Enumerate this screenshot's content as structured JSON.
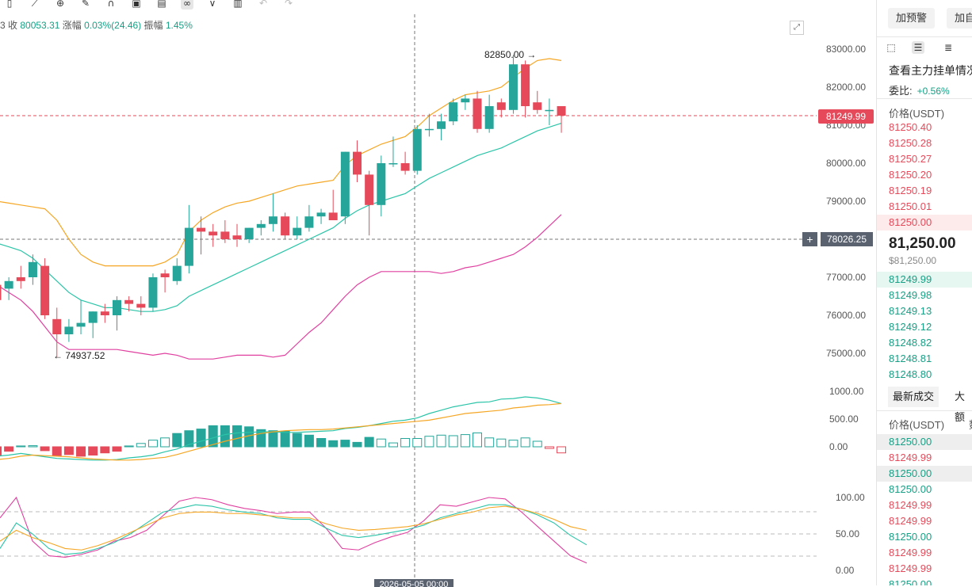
{
  "info_bar": {
    "close_label": "3 收",
    "close_value": "80053.31",
    "change_label": "涨幅",
    "change_value": "0.03%(24.46)",
    "amplitude_label": "振幅",
    "amplitude_value": "1.45%"
  },
  "price_axis": [
    "83000.00",
    "82000.00",
    "81000.00",
    "80000.00",
    "79000.00",
    "78000.00",
    "77000.00",
    "76000.00",
    "75000.00"
  ],
  "volume_axis": [
    "1000.00",
    "500.00",
    "0.00"
  ],
  "osc_axis": [
    "100.00",
    "50.00",
    "0.00"
  ],
  "last_price_tag": "81249.99",
  "crosshair_price": "78026.25",
  "crosshair_date": "2026-05-05 00:00",
  "high_label": "82850.00",
  "low_label": "74937.52",
  "colors": {
    "up": "#26a69a",
    "down": "#e64a5a",
    "ma_orange": "#f5a623",
    "ma_teal": "#2bc4a8",
    "ma_pink": "#e040a0"
  },
  "chart_data": {
    "type": "candlestick",
    "y_range": [
      74500,
      83500
    ],
    "candles": [
      {
        "o": 76800,
        "h": 77100,
        "l": 76300,
        "c": 76400
      },
      {
        "o": 76700,
        "h": 77000,
        "l": 76400,
        "c": 76900
      },
      {
        "o": 77000,
        "h": 77300,
        "l": 76700,
        "c": 76900
      },
      {
        "o": 77000,
        "h": 77600,
        "l": 76800,
        "c": 77400
      },
      {
        "o": 77300,
        "h": 77500,
        "l": 75900,
        "c": 76000
      },
      {
        "o": 75900,
        "h": 76200,
        "l": 74900,
        "c": 75500
      },
      {
        "o": 75500,
        "h": 75900,
        "l": 75300,
        "c": 75700
      },
      {
        "o": 75700,
        "h": 76400,
        "l": 75500,
        "c": 75800
      },
      {
        "o": 75800,
        "h": 76100,
        "l": 75400,
        "c": 76100
      },
      {
        "o": 76100,
        "h": 76300,
        "l": 75800,
        "c": 76000
      },
      {
        "o": 76000,
        "h": 76500,
        "l": 75600,
        "c": 76400
      },
      {
        "o": 76400,
        "h": 76500,
        "l": 76100,
        "c": 76300
      },
      {
        "o": 76300,
        "h": 76500,
        "l": 76000,
        "c": 76200
      },
      {
        "o": 76200,
        "h": 77100,
        "l": 76100,
        "c": 77000
      },
      {
        "o": 77100,
        "h": 77200,
        "l": 76600,
        "c": 77000
      },
      {
        "o": 76900,
        "h": 77500,
        "l": 76800,
        "c": 77300
      },
      {
        "o": 77300,
        "h": 78900,
        "l": 77100,
        "c": 78300
      },
      {
        "o": 78300,
        "h": 78600,
        "l": 77600,
        "c": 78200
      },
      {
        "o": 78200,
        "h": 78400,
        "l": 77800,
        "c": 78100
      },
      {
        "o": 78200,
        "h": 78500,
        "l": 77900,
        "c": 78000
      },
      {
        "o": 78100,
        "h": 78400,
        "l": 77800,
        "c": 78000
      },
      {
        "o": 78000,
        "h": 78300,
        "l": 77900,
        "c": 78300
      },
      {
        "o": 78300,
        "h": 78500,
        "l": 78100,
        "c": 78400
      },
      {
        "o": 78400,
        "h": 79200,
        "l": 78200,
        "c": 78600
      },
      {
        "o": 78600,
        "h": 78700,
        "l": 78000,
        "c": 78100
      },
      {
        "o": 78100,
        "h": 78600,
        "l": 78000,
        "c": 78300
      },
      {
        "o": 78300,
        "h": 78900,
        "l": 78200,
        "c": 78600
      },
      {
        "o": 78600,
        "h": 78800,
        "l": 78400,
        "c": 78700
      },
      {
        "o": 78700,
        "h": 79300,
        "l": 78500,
        "c": 78500
      },
      {
        "o": 78600,
        "h": 80300,
        "l": 78400,
        "c": 80300
      },
      {
        "o": 80300,
        "h": 80600,
        "l": 79500,
        "c": 79700
      },
      {
        "o": 79700,
        "h": 79800,
        "l": 78100,
        "c": 78900
      },
      {
        "o": 78900,
        "h": 80200,
        "l": 78600,
        "c": 80000
      },
      {
        "o": 80000,
        "h": 80700,
        "l": 79900,
        "c": 80000
      },
      {
        "o": 80000,
        "h": 80300,
        "l": 79700,
        "c": 79800
      },
      {
        "o": 79800,
        "h": 81000,
        "l": 79700,
        "c": 80900
      },
      {
        "o": 80900,
        "h": 81300,
        "l": 80700,
        "c": 80900
      },
      {
        "o": 80900,
        "h": 81300,
        "l": 80600,
        "c": 81100
      },
      {
        "o": 81100,
        "h": 81700,
        "l": 81000,
        "c": 81600
      },
      {
        "o": 81600,
        "h": 81800,
        "l": 81400,
        "c": 81700
      },
      {
        "o": 81700,
        "h": 81900,
        "l": 80800,
        "c": 80900
      },
      {
        "o": 80900,
        "h": 81800,
        "l": 80800,
        "c": 81500
      },
      {
        "o": 81600,
        "h": 81700,
        "l": 81200,
        "c": 81400
      },
      {
        "o": 81400,
        "h": 82850,
        "l": 81300,
        "c": 82600
      },
      {
        "o": 82600,
        "h": 82700,
        "l": 81200,
        "c": 81500
      },
      {
        "o": 81600,
        "h": 81900,
        "l": 81300,
        "c": 81400
      },
      {
        "o": 81400,
        "h": 81700,
        "l": 81000,
        "c": 81400
      },
      {
        "o": 81500,
        "h": 81500,
        "l": 80800,
        "c": 81250
      }
    ],
    "ma_upper": [
      79000,
      78950,
      78900,
      78850,
      78800,
      78500,
      78000,
      77600,
      77400,
      77300,
      77300,
      77300,
      77300,
      77300,
      77400,
      77600,
      78200,
      78500,
      78700,
      78850,
      78950,
      79000,
      79100,
      79200,
      79300,
      79400,
      79450,
      79500,
      79550,
      79950,
      80200,
      80350,
      80500,
      80600,
      80700,
      80950,
      81250,
      81450,
      81650,
      81800,
      81850,
      81900,
      82000,
      82250,
      82500,
      82700,
      82750,
      82700
    ],
    "ma_mid": [
      77900,
      77800,
      77700,
      77500,
      77200,
      76900,
      76600,
      76400,
      76300,
      76200,
      76200,
      76150,
      76100,
      76100,
      76150,
      76250,
      76500,
      76650,
      76800,
      76950,
      77100,
      77250,
      77400,
      77550,
      77700,
      77850,
      78000,
      78150,
      78300,
      78550,
      78750,
      78900,
      79000,
      79100,
      79200,
      79400,
      79600,
      79750,
      79900,
      80050,
      80200,
      80300,
      80400,
      80550,
      80700,
      80850,
      80950,
      81050
    ],
    "ma_lower": [
      76800,
      76600,
      76400,
      76100,
      75700,
      75300,
      75100,
      75100,
      75100,
      75100,
      75100,
      75050,
      75000,
      74950,
      75000,
      74950,
      74850,
      74850,
      74850,
      74900,
      74950,
      74950,
      74950,
      74900,
      74950,
      75250,
      75550,
      75800,
      76150,
      76500,
      76800,
      77000,
      77150,
      77150,
      77150,
      77150,
      77150,
      77100,
      77150,
      77250,
      77300,
      77400,
      77500,
      77600,
      77800,
      78050,
      78350,
      78650
    ],
    "volume": [
      -160,
      -80,
      15,
      20,
      -70,
      -160,
      -140,
      -170,
      -150,
      -110,
      -80,
      15,
      60,
      120,
      160,
      240,
      290,
      320,
      380,
      380,
      380,
      360,
      310,
      290,
      280,
      240,
      210,
      150,
      110,
      120,
      80,
      170,
      140,
      70,
      150,
      150,
      190,
      210,
      200,
      220,
      250,
      160,
      140,
      120,
      160,
      100,
      -30,
      -110
    ],
    "volume_ma_a": [
      -170,
      -150,
      -120,
      -150,
      -180,
      -210,
      -220,
      -230,
      -240,
      -240,
      -230,
      -200,
      -180,
      -150,
      -90,
      -40,
      40,
      100,
      160,
      220,
      250,
      260,
      270,
      270,
      260,
      260,
      270,
      280,
      290,
      330,
      350,
      380,
      420,
      460,
      480,
      520,
      600,
      660,
      720,
      760,
      800,
      810,
      860,
      870,
      900,
      880,
      840,
      780
    ],
    "volume_ma_b": [
      -230,
      -210,
      -170,
      -150,
      -160,
      -170,
      -180,
      -200,
      -220,
      -230,
      -240,
      -240,
      -230,
      -210,
      -190,
      -140,
      -80,
      -20,
      40,
      100,
      150,
      200,
      240,
      270,
      290,
      300,
      310,
      310,
      320,
      340,
      360,
      380,
      400,
      420,
      440,
      460,
      480,
      520,
      560,
      600,
      620,
      640,
      660,
      700,
      720,
      750,
      760,
      780
    ],
    "osc_k": [
      72,
      100,
      40,
      20,
      18,
      22,
      28,
      40,
      45,
      55,
      75,
      95,
      100,
      97,
      90,
      85,
      82,
      78,
      80,
      80,
      58,
      30,
      28,
      38,
      46,
      52,
      68,
      90,
      88,
      94,
      100,
      98,
      80,
      60,
      40,
      20,
      10
    ],
    "osc_d": [
      30,
      65,
      50,
      30,
      22,
      24,
      30,
      38,
      50,
      65,
      80,
      85,
      90,
      88,
      83,
      80,
      78,
      72,
      70,
      70,
      58,
      48,
      45,
      48,
      52,
      56,
      62,
      72,
      78,
      84,
      90,
      90,
      84,
      76,
      65,
      48,
      35
    ],
    "osc_j": [
      40,
      55,
      45,
      38,
      30,
      28,
      34,
      42,
      52,
      62,
      72,
      78,
      80,
      80,
      78,
      78,
      76,
      74,
      72,
      72,
      64,
      58,
      55,
      56,
      58,
      60,
      64,
      70,
      76,
      80,
      86,
      88,
      84,
      78,
      70,
      60,
      55
    ]
  },
  "panel": {
    "btn_alert": "加预警",
    "btn_watch": "加自",
    "title": "查看主力挂单情况",
    "ratio_label": "委比:",
    "ratio_value": "+0.56%",
    "price_header": "价格(USDT)",
    "asks": [
      "81250.40",
      "81250.28",
      "81250.27",
      "81250.20",
      "81250.19",
      "81250.01",
      "81250.00"
    ],
    "mid_price": "81,250.00",
    "mid_sub": "$81,250.00",
    "bids": [
      "81249.99",
      "81249.98",
      "81249.13",
      "81249.12",
      "81248.82",
      "81248.81",
      "81248.80"
    ],
    "tab_trades": "最新成交",
    "tab_large": "大额",
    "trades_header": "价格(USDT)",
    "trades_header2": "数",
    "trades": [
      {
        "p": "81250.00",
        "side": "bid"
      },
      {
        "p": "81249.99",
        "side": "ask"
      },
      {
        "p": "81250.00",
        "side": "bid"
      },
      {
        "p": "81250.00",
        "side": "bid"
      },
      {
        "p": "81249.99",
        "side": "ask"
      },
      {
        "p": "81249.99",
        "side": "ask"
      },
      {
        "p": "81250.00",
        "side": "bid"
      },
      {
        "p": "81249.99",
        "side": "ask"
      },
      {
        "p": "81249.99",
        "side": "ask"
      },
      {
        "p": "81250.00",
        "side": "bid"
      }
    ]
  },
  "icons": [
    "bookmark-icon",
    "ruler-icon",
    "zoom-icon",
    "pen-icon",
    "magnet-icon",
    "lock-icon",
    "template-icon",
    "link-icon",
    "filter-icon",
    "trash-icon",
    "undo-icon",
    "redo-icon"
  ]
}
